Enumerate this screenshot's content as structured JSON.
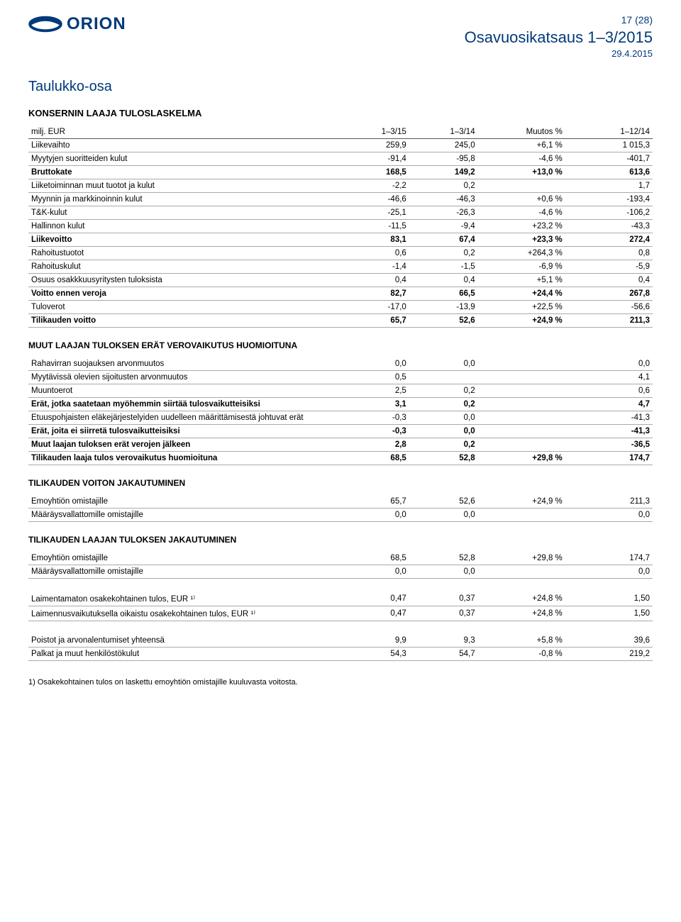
{
  "header": {
    "logo_text": "ORION",
    "page_num": "17 (28)",
    "report_title": "Osavuosikatsaus 1–3/2015",
    "report_date": "29.4.2015",
    "logo_color": "#003a7a"
  },
  "section_title": "Taulukko-osa",
  "table_title": "KONSERNIN LAAJA TULOSLASKELMA",
  "columns": [
    "milj. EUR",
    "1–3/15",
    "1–3/14",
    "Muutos %",
    "1–12/14"
  ],
  "rows_main": [
    {
      "l": "Liikevaihto",
      "v": [
        "259,9",
        "245,0",
        "+6,1 %",
        "1 015,3"
      ],
      "b": false
    },
    {
      "l": "Myytyjen suoritteiden kulut",
      "v": [
        "-91,4",
        "-95,8",
        "-4,6 %",
        "-401,7"
      ],
      "b": false
    },
    {
      "l": "Bruttokate",
      "v": [
        "168,5",
        "149,2",
        "+13,0 %",
        "613,6"
      ],
      "b": true
    },
    {
      "l": "Liiketoiminnan muut tuotot ja kulut",
      "v": [
        "-2,2",
        "0,2",
        "",
        "1,7"
      ],
      "b": false
    },
    {
      "l": "Myynnin ja markkinoinnin kulut",
      "v": [
        "-46,6",
        "-46,3",
        "+0,6 %",
        "-193,4"
      ],
      "b": false
    },
    {
      "l": "T&K-kulut",
      "v": [
        "-25,1",
        "-26,3",
        "-4,6 %",
        "-106,2"
      ],
      "b": false
    },
    {
      "l": "Hallinnon kulut",
      "v": [
        "-11,5",
        "-9,4",
        "+23,2 %",
        "-43,3"
      ],
      "b": false
    },
    {
      "l": "Liikevoitto",
      "v": [
        "83,1",
        "67,4",
        "+23,3 %",
        "272,4"
      ],
      "b": true
    },
    {
      "l": "Rahoitustuotot",
      "v": [
        "0,6",
        "0,2",
        "+264,3 %",
        "0,8"
      ],
      "b": false
    },
    {
      "l": "Rahoituskulut",
      "v": [
        "-1,4",
        "-1,5",
        "-6,9 %",
        "-5,9"
      ],
      "b": false
    },
    {
      "l": "Osuus osakkkuusyritysten tuloksista",
      "v": [
        "0,4",
        "0,4",
        "+5,1 %",
        "0,4"
      ],
      "b": false
    },
    {
      "l": "Voitto ennen veroja",
      "v": [
        "82,7",
        "66,5",
        "+24,4 %",
        "267,8"
      ],
      "b": true
    },
    {
      "l": "Tuloverot",
      "v": [
        "-17,0",
        "-13,9",
        "+22,5 %",
        "-56,6"
      ],
      "b": false
    },
    {
      "l": "Tilikauden voitto",
      "v": [
        "65,7",
        "52,6",
        "+24,9 %",
        "211,3"
      ],
      "b": true
    }
  ],
  "sub1_title": "MUUT LAAJAN TULOKSEN ERÄT VEROVAIKUTUS HUOMIOITUNA",
  "rows_sub1": [
    {
      "l": "Rahavirran suojauksen arvonmuutos",
      "v": [
        "0,0",
        "0,0",
        "",
        "0,0"
      ],
      "b": false
    },
    {
      "l": "Myytävissä olevien sijoitusten arvonmuutos",
      "v": [
        "0,5",
        "",
        "",
        "4,1"
      ],
      "b": false
    },
    {
      "l": "Muuntoerot",
      "v": [
        "2,5",
        "0,2",
        "",
        "0,6"
      ],
      "b": false
    },
    {
      "l": "Erät, jotka saatetaan myöhemmin siirtää tulosvaikutteisiksi",
      "v": [
        "3,1",
        "0,2",
        "",
        "4,7"
      ],
      "b": true
    },
    {
      "l": "Etuuspohjaisten eläkejärjestelyiden uudelleen määrittämisestä johtuvat erät",
      "v": [
        "-0,3",
        "0,0",
        "",
        "-41,3"
      ],
      "b": false
    },
    {
      "l": "Erät, joita ei siirretä tulosvaikutteisiksi",
      "v": [
        "-0,3",
        "0,0",
        "",
        "-41,3"
      ],
      "b": true
    },
    {
      "l": "Muut laajan tuloksen erät verojen jälkeen",
      "v": [
        "2,8",
        "0,2",
        "",
        "-36,5"
      ],
      "b": true
    },
    {
      "l": "Tilikauden laaja tulos verovaikutus huomioituna",
      "v": [
        "68,5",
        "52,8",
        "+29,8 %",
        "174,7"
      ],
      "b": true
    }
  ],
  "sub2_title": "TILIKAUDEN VOITON JAKAUTUMINEN",
  "rows_sub2": [
    {
      "l": "Emoyhtiön omistajille",
      "v": [
        "65,7",
        "52,6",
        "+24,9 %",
        "211,3"
      ],
      "b": false
    },
    {
      "l": "Määräysvallattomille omistajille",
      "v": [
        "0,0",
        "0,0",
        "",
        "0,0"
      ],
      "b": false
    }
  ],
  "sub3_title": "TILIKAUDEN LAAJAN TULOKSEN JAKAUTUMINEN",
  "rows_sub3": [
    {
      "l": "Emoyhtiön omistajille",
      "v": [
        "68,5",
        "52,8",
        "+29,8 %",
        "174,7"
      ],
      "b": false
    },
    {
      "l": "Määräysvallattomille omistajille",
      "v": [
        "0,0",
        "0,0",
        "",
        "0,0"
      ],
      "b": false
    }
  ],
  "rows_sub4": [
    {
      "l": "Laimentamaton osakekohtainen tulos, EUR ¹⁾",
      "v": [
        "0,47",
        "0,37",
        "+24,8 %",
        "1,50"
      ],
      "b": false
    },
    {
      "l": "Laimennusvaikutuksella oikaistu osakekohtainen tulos, EUR ¹⁾",
      "v": [
        "0,47",
        "0,37",
        "+24,8 %",
        "1,50"
      ],
      "b": false
    }
  ],
  "rows_sub5": [
    {
      "l": "Poistot ja arvonalentumiset yhteensä",
      "v": [
        "9,9",
        "9,3",
        "+5,8 %",
        "39,6"
      ],
      "b": false
    },
    {
      "l": "Palkat ja muut henkilöstökulut",
      "v": [
        "54,3",
        "54,7",
        "-0,8 %",
        "219,2"
      ],
      "b": false
    }
  ],
  "footnote": "1) Osakekohtainen tulos on laskettu emoyhtiön omistajille kuuluvasta voitosta."
}
